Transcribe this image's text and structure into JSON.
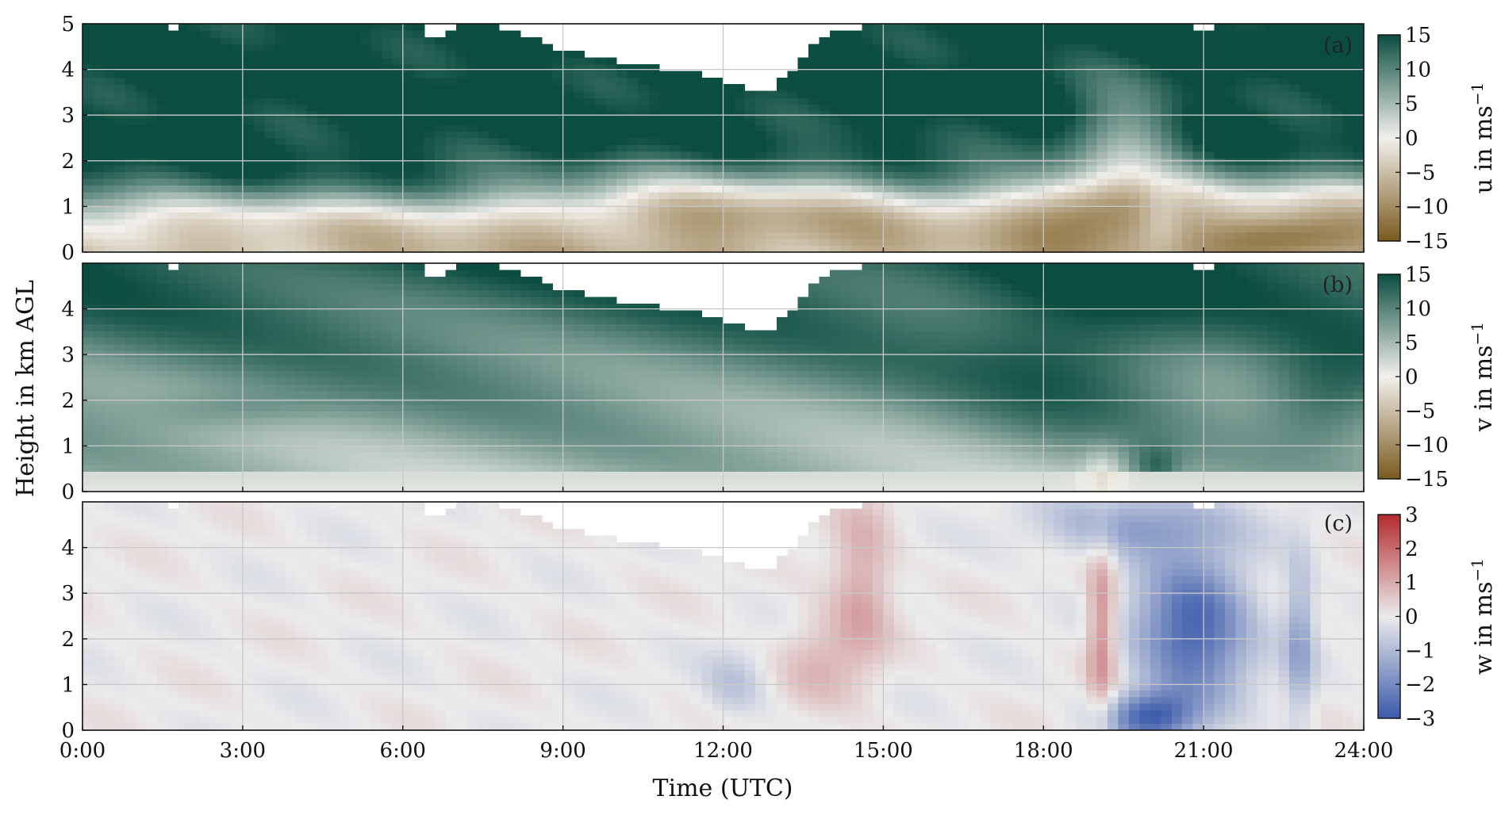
{
  "figure": {
    "xlabel": "Time (UTC)",
    "ylabel": "Height in km AGL"
  },
  "chart_data": [
    {
      "type": "heatmap",
      "panel_label": "(a)",
      "variable": "u",
      "colorbar_label": "u in ms",
      "colorbar_unit_exponent": "−1",
      "xlim": [
        0,
        24
      ],
      "ylim": [
        0,
        5
      ],
      "x_ticks": [
        "0:00",
        "3:00",
        "6:00",
        "9:00",
        "12:00",
        "15:00",
        "18:00",
        "21:00",
        "24:00"
      ],
      "y_ticks": [
        "0",
        "1",
        "2",
        "3",
        "4",
        "5"
      ],
      "clim": [
        -15,
        15
      ],
      "cbar_ticks": [
        "15",
        "10",
        "5",
        "0",
        "−5",
        "−10",
        "−15"
      ],
      "colormap": "brown-white-green",
      "colors": {
        "low": "#7a5a1e",
        "mid": "#f2f0ec",
        "high": "#0b4d40"
      },
      "grid": true
    },
    {
      "type": "heatmap",
      "panel_label": "(b)",
      "variable": "v",
      "colorbar_label": "v in ms",
      "colorbar_unit_exponent": "−1",
      "xlim": [
        0,
        24
      ],
      "ylim": [
        0,
        5
      ],
      "x_ticks": [
        "0:00",
        "3:00",
        "6:00",
        "9:00",
        "12:00",
        "15:00",
        "18:00",
        "21:00",
        "24:00"
      ],
      "y_ticks": [
        "0",
        "1",
        "2",
        "3",
        "4"
      ],
      "clim": [
        -15,
        15
      ],
      "cbar_ticks": [
        "15",
        "10",
        "5",
        "0",
        "−5",
        "−10",
        "−15"
      ],
      "colormap": "brown-white-green",
      "colors": {
        "low": "#7a5a1e",
        "mid": "#f2f0ec",
        "high": "#0b4d40"
      },
      "grid": true
    },
    {
      "type": "heatmap",
      "panel_label": "(c)",
      "variable": "w",
      "colorbar_label": "w in ms",
      "colorbar_unit_exponent": "−1",
      "xlim": [
        0,
        24
      ],
      "ylim": [
        0,
        5
      ],
      "x_ticks": [
        "0:00",
        "3:00",
        "6:00",
        "9:00",
        "12:00",
        "15:00",
        "18:00",
        "21:00",
        "24:00"
      ],
      "y_ticks": [
        "0",
        "1",
        "2",
        "3",
        "4"
      ],
      "clim": [
        -3,
        3
      ],
      "cbar_ticks": [
        "3",
        "2",
        "1",
        "0",
        "−1",
        "−2",
        "−3"
      ],
      "colormap": "blue-white-red",
      "colors": {
        "low": "#3a5aaa",
        "mid": "#ebebeb",
        "high": "#b22a2e"
      },
      "grid": true
    }
  ],
  "data_ceiling_km": {
    "time_h": [
      0,
      1.6,
      1.7,
      1.8,
      1.9,
      6.4,
      6.5,
      6.6,
      6.9,
      7.2,
      8.0,
      8.6,
      9.0,
      10.0,
      11.0,
      12.0,
      12.4,
      12.6,
      12.9,
      13.3,
      13.6,
      14.0,
      14.8,
      20.7,
      20.8,
      21.1,
      21.2,
      24.0
    ],
    "top_km": [
      5,
      5,
      4.8,
      4.8,
      5,
      5,
      4.7,
      4.6,
      4.9,
      5,
      4.9,
      4.6,
      4.4,
      4.2,
      4.0,
      3.8,
      3.6,
      3.5,
      3.6,
      4.0,
      4.5,
      4.8,
      5,
      5,
      4.9,
      4.9,
      5,
      5
    ]
  }
}
